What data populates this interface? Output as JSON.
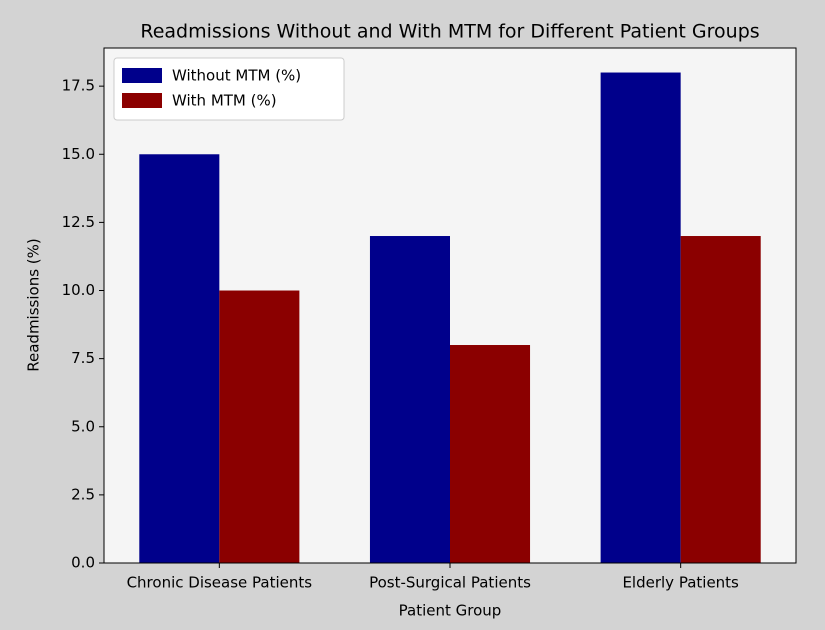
{
  "chart_data": {
    "type": "bar",
    "title": "Readmissions Without and With MTM for Different Patient Groups",
    "xlabel": "Patient Group",
    "ylabel": "Readmissions (%)",
    "categories": [
      "Chronic Disease Patients",
      "Post-Surgical Patients",
      "Elderly Patients"
    ],
    "series": [
      {
        "name": "Without MTM (%)",
        "color": "#00008b",
        "values": [
          15,
          12,
          18
        ]
      },
      {
        "name": "With MTM (%)",
        "color": "#8b0000",
        "values": [
          10,
          8,
          12
        ]
      }
    ],
    "ylim": [
      0,
      18.9
    ],
    "yticks": [
      {
        "value": 0,
        "label": "0.0"
      },
      2.5,
      {
        "value": 5,
        "label": "5.0"
      },
      7.5,
      {
        "value": 10,
        "label": "10.0"
      },
      12.5,
      {
        "value": 15,
        "label": "15.0"
      },
      17.5
    ],
    "legend": "upper left",
    "background": "#d3d3d3",
    "plot_background": "#f5f5f5"
  }
}
